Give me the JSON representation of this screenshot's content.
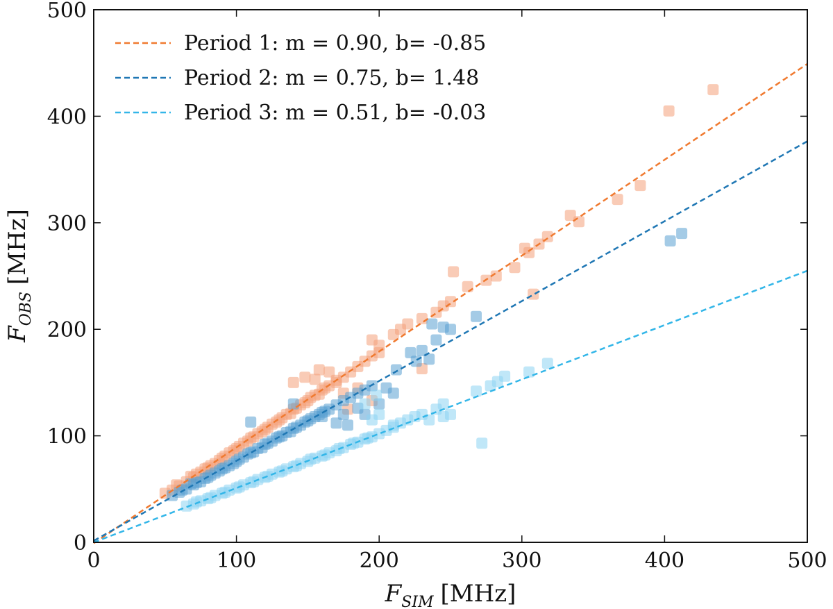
{
  "chart_data": {
    "type": "scatter",
    "title": "",
    "xlabel": {
      "main": "F",
      "sub": "SIM",
      "unit": "[MHz]"
    },
    "ylabel": {
      "main": "F",
      "sub": "OBS",
      "unit": "[MHz]"
    },
    "xlim": [
      0,
      500
    ],
    "ylim": [
      0,
      500
    ],
    "xticks": [
      0,
      100,
      200,
      300,
      400,
      500
    ],
    "yticks": [
      0,
      100,
      200,
      300,
      400,
      500
    ],
    "xtick_labels": [
      "0",
      "100",
      "200",
      "300",
      "400",
      "500"
    ],
    "ytick_labels": [
      "0",
      "100",
      "200",
      "300",
      "400",
      "500"
    ],
    "grid": false,
    "legend_position": "top-left",
    "series": [
      {
        "name": "Period 1",
        "label": "Period 1: m = 0.90, b= -0.85",
        "fit": {
          "m": 0.9,
          "b": -0.85
        },
        "line_color": "#f07a30",
        "point_color": "#f4a07a",
        "points": [
          [
            50,
            46
          ],
          [
            55,
            49
          ],
          [
            60,
            53
          ],
          [
            65,
            57
          ],
          [
            70,
            61
          ],
          [
            75,
            66
          ],
          [
            80,
            70
          ],
          [
            85,
            74
          ],
          [
            90,
            79
          ],
          [
            95,
            84
          ],
          [
            100,
            88
          ],
          [
            105,
            93
          ],
          [
            110,
            98
          ],
          [
            115,
            102
          ],
          [
            120,
            106
          ],
          [
            125,
            111
          ],
          [
            130,
            115
          ],
          [
            135,
            120
          ],
          [
            140,
            125
          ],
          [
            145,
            129
          ],
          [
            150,
            133
          ],
          [
            155,
            138
          ],
          [
            160,
            143
          ],
          [
            165,
            147
          ],
          [
            170,
            152
          ],
          [
            58,
            54
          ],
          [
            68,
            62
          ],
          [
            78,
            69
          ],
          [
            88,
            77
          ],
          [
            98,
            86
          ],
          [
            108,
            95
          ],
          [
            118,
            104
          ],
          [
            128,
            113
          ],
          [
            138,
            121
          ],
          [
            148,
            131
          ],
          [
            158,
            139
          ],
          [
            72,
            64
          ],
          [
            82,
            72
          ],
          [
            92,
            81
          ],
          [
            102,
            90
          ],
          [
            112,
            99
          ],
          [
            122,
            108
          ],
          [
            132,
            117
          ],
          [
            142,
            126
          ],
          [
            152,
            136
          ],
          [
            162,
            145
          ],
          [
            175,
            155
          ],
          [
            180,
            160
          ],
          [
            185,
            165
          ],
          [
            190,
            170
          ],
          [
            195,
            175
          ],
          [
            200,
            178
          ],
          [
            195,
            190
          ],
          [
            200,
            185
          ],
          [
            210,
            195
          ],
          [
            215,
            200
          ],
          [
            220,
            205
          ],
          [
            230,
            210
          ],
          [
            240,
            216
          ],
          [
            245,
            222
          ],
          [
            250,
            226
          ],
          [
            252,
            254
          ],
          [
            262,
            240
          ],
          [
            275,
            246
          ],
          [
            282,
            250
          ],
          [
            295,
            258
          ],
          [
            302,
            276
          ],
          [
            305,
            272
          ],
          [
            308,
            233
          ],
          [
            312,
            280
          ],
          [
            318,
            287
          ],
          [
            334,
            307
          ],
          [
            340,
            301
          ],
          [
            367,
            322
          ],
          [
            383,
            335
          ],
          [
            403,
            405
          ],
          [
            434,
            425
          ],
          [
            175,
            140
          ],
          [
            185,
            145
          ],
          [
            195,
            133
          ],
          [
            230,
            163
          ],
          [
            178,
            125
          ],
          [
            170,
            150
          ],
          [
            148,
            155
          ],
          [
            155,
            153
          ],
          [
            140,
            150
          ],
          [
            158,
            162
          ],
          [
            165,
            160
          ]
        ]
      },
      {
        "name": "Period 2",
        "label": "Period 2: m = 0.75, b= 1.48",
        "fit": {
          "m": 0.75,
          "b": 1.48
        },
        "line_color": "#1f77b4",
        "point_color": "#5aa0d2",
        "points": [
          [
            55,
            44
          ],
          [
            60,
            47
          ],
          [
            65,
            50
          ],
          [
            70,
            54
          ],
          [
            75,
            57
          ],
          [
            80,
            61
          ],
          [
            85,
            65
          ],
          [
            90,
            69
          ],
          [
            95,
            72
          ],
          [
            100,
            76
          ],
          [
            105,
            80
          ],
          [
            110,
            84
          ],
          [
            115,
            88
          ],
          [
            120,
            92
          ],
          [
            125,
            95
          ],
          [
            130,
            99
          ],
          [
            135,
            103
          ],
          [
            140,
            107
          ],
          [
            145,
            110
          ],
          [
            150,
            114
          ],
          [
            155,
            118
          ],
          [
            160,
            122
          ],
          [
            165,
            125
          ],
          [
            170,
            129
          ],
          [
            175,
            133
          ],
          [
            180,
            136
          ],
          [
            185,
            140
          ],
          [
            190,
            143
          ],
          [
            195,
            147
          ],
          [
            62,
            49
          ],
          [
            72,
            56
          ],
          [
            82,
            63
          ],
          [
            92,
            70
          ],
          [
            102,
            78
          ],
          [
            112,
            85
          ],
          [
            122,
            93
          ],
          [
            132,
            100
          ],
          [
            142,
            108
          ],
          [
            152,
            116
          ],
          [
            162,
            123
          ],
          [
            68,
            55
          ],
          [
            78,
            60
          ],
          [
            88,
            67
          ],
          [
            98,
            74
          ],
          [
            108,
            83
          ],
          [
            118,
            89
          ],
          [
            128,
            98
          ],
          [
            138,
            104
          ],
          [
            148,
            113
          ],
          [
            158,
            120
          ],
          [
            110,
            113
          ],
          [
            140,
            130
          ],
          [
            160,
            118
          ],
          [
            170,
            112
          ],
          [
            175,
            120
          ],
          [
            185,
            126
          ],
          [
            205,
            145
          ],
          [
            212,
            162
          ],
          [
            222,
            178
          ],
          [
            226,
            170
          ],
          [
            230,
            180
          ],
          [
            235,
            172
          ],
          [
            240,
            190
          ],
          [
            237,
            205
          ],
          [
            245,
            202
          ],
          [
            250,
            200
          ],
          [
            268,
            212
          ],
          [
            178,
            110
          ],
          [
            190,
            120
          ],
          [
            200,
            130
          ],
          [
            210,
            140
          ],
          [
            404,
            283
          ],
          [
            412,
            290
          ]
        ]
      },
      {
        "name": "Period 3",
        "label": "Period 3: m = 0.51, b= -0.03",
        "fit": {
          "m": 0.51,
          "b": -0.03
        },
        "line_color": "#33b6e8",
        "point_color": "#8dd3f2",
        "points": [
          [
            65,
            34
          ],
          [
            70,
            36
          ],
          [
            75,
            39
          ],
          [
            80,
            41
          ],
          [
            85,
            44
          ],
          [
            90,
            46
          ],
          [
            95,
            49
          ],
          [
            100,
            51
          ],
          [
            105,
            54
          ],
          [
            110,
            56
          ],
          [
            115,
            59
          ],
          [
            120,
            61
          ],
          [
            125,
            64
          ],
          [
            130,
            66
          ],
          [
            135,
            69
          ],
          [
            140,
            71
          ],
          [
            145,
            74
          ],
          [
            150,
            76
          ],
          [
            155,
            79
          ],
          [
            160,
            81
          ],
          [
            165,
            84
          ],
          [
            170,
            86
          ],
          [
            175,
            89
          ],
          [
            180,
            92
          ],
          [
            185,
            94
          ],
          [
            190,
            97
          ],
          [
            195,
            99
          ],
          [
            200,
            102
          ],
          [
            72,
            38
          ],
          [
            82,
            42
          ],
          [
            92,
            47
          ],
          [
            102,
            52
          ],
          [
            112,
            57
          ],
          [
            122,
            62
          ],
          [
            132,
            67
          ],
          [
            142,
            72
          ],
          [
            152,
            78
          ],
          [
            162,
            82
          ],
          [
            172,
            88
          ],
          [
            182,
            93
          ],
          [
            192,
            98
          ],
          [
            205,
            105
          ],
          [
            210,
            108
          ],
          [
            215,
            112
          ],
          [
            220,
            115
          ],
          [
            225,
            118
          ],
          [
            230,
            120
          ],
          [
            235,
            115
          ],
          [
            240,
            125
          ],
          [
            245,
            118
          ],
          [
            250,
            120
          ],
          [
            245,
            130
          ],
          [
            195,
            115
          ],
          [
            200,
            120
          ],
          [
            190,
            130
          ],
          [
            198,
            138
          ],
          [
            210,
            110
          ],
          [
            268,
            142
          ],
          [
            272,
            93
          ],
          [
            278,
            147
          ],
          [
            283,
            151
          ],
          [
            288,
            156
          ],
          [
            305,
            160
          ],
          [
            318,
            168
          ]
        ]
      }
    ]
  }
}
